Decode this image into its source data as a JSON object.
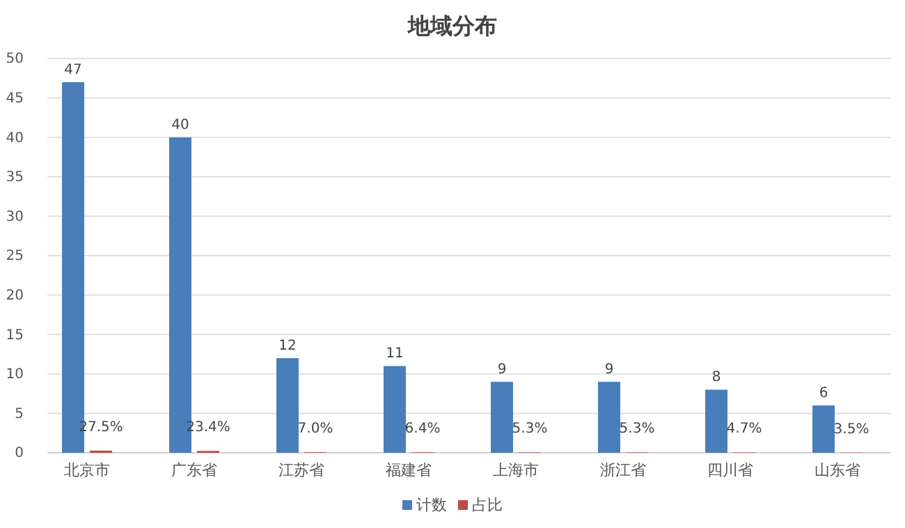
{
  "chart_data": {
    "type": "bar",
    "title": "地域分布",
    "categories": [
      "北京市",
      "广东省",
      "江苏省",
      "福建省",
      "上海市",
      "浙江省",
      "四川省",
      "山东省"
    ],
    "series": [
      {
        "name": "计数",
        "color": "#4a7ebb",
        "values": [
          47,
          40,
          12,
          11,
          9,
          9,
          8,
          6
        ],
        "value_labels": [
          "47",
          "40",
          "12",
          "11",
          "9",
          "9",
          "8",
          "6"
        ]
      },
      {
        "name": "占比",
        "color": "#be4b48",
        "values": [
          0.275,
          0.234,
          0.07,
          0.064,
          0.053,
          0.053,
          0.047,
          0.035
        ],
        "value_labels": [
          "27.5%",
          "23.4%",
          "7.0%",
          "6.4%",
          "5.3%",
          "5.3%",
          "4.7%",
          "3.5%"
        ]
      }
    ],
    "ylim": [
      0,
      50
    ],
    "yticks": [
      0,
      5,
      10,
      15,
      20,
      25,
      30,
      35,
      40,
      45,
      50
    ],
    "grid": "y",
    "legend": "bottom"
  }
}
